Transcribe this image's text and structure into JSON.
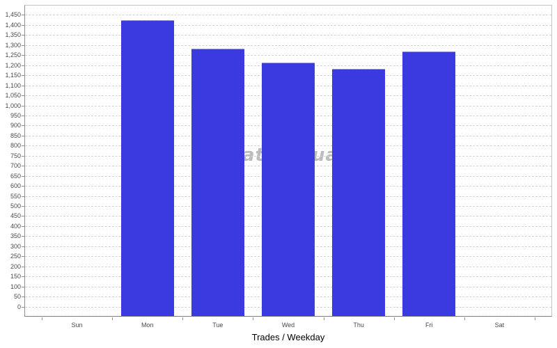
{
  "chart_data": {
    "type": "bar",
    "title": "",
    "xlabel": "Trades / Weekday",
    "ylabel": "",
    "categories": [
      "Sun",
      "Mon",
      "Tue",
      "Wed",
      "Thu",
      "Fri",
      "Sat"
    ],
    "values": [
      0,
      1425,
      1281,
      1213,
      1180,
      1267,
      0
    ],
    "ylim": [
      -50,
      1500
    ],
    "y_tick_min": 0,
    "y_tick_step": 50,
    "y_tick_max": 1450,
    "y_tick_labels": [
      "0",
      "50",
      "100",
      "150",
      "200",
      "250",
      "300",
      "350",
      "400",
      "450",
      "500",
      "550",
      "600",
      "650",
      "700",
      "750",
      "800",
      "850",
      "900",
      "950",
      "1,000",
      "1,050",
      "1,100",
      "1,150",
      "1,200",
      "1,250",
      "1,300",
      "1,350",
      "1,400",
      "1,450"
    ],
    "grid": "horizontal-dashed",
    "legend": "none",
    "bar_color": "#3a3ae0"
  },
  "watermark": {
    "fragments": [
      {
        "text": "at"
      },
      {
        "text": "ua"
      }
    ]
  },
  "colors": {
    "bar": "#3a3ae0",
    "gridline": "#d2d2d2",
    "axis": "#8f8f8f",
    "tick_label": "#4a4a4a",
    "watermark": "#bcbcbc",
    "background": "#ffffff"
  }
}
